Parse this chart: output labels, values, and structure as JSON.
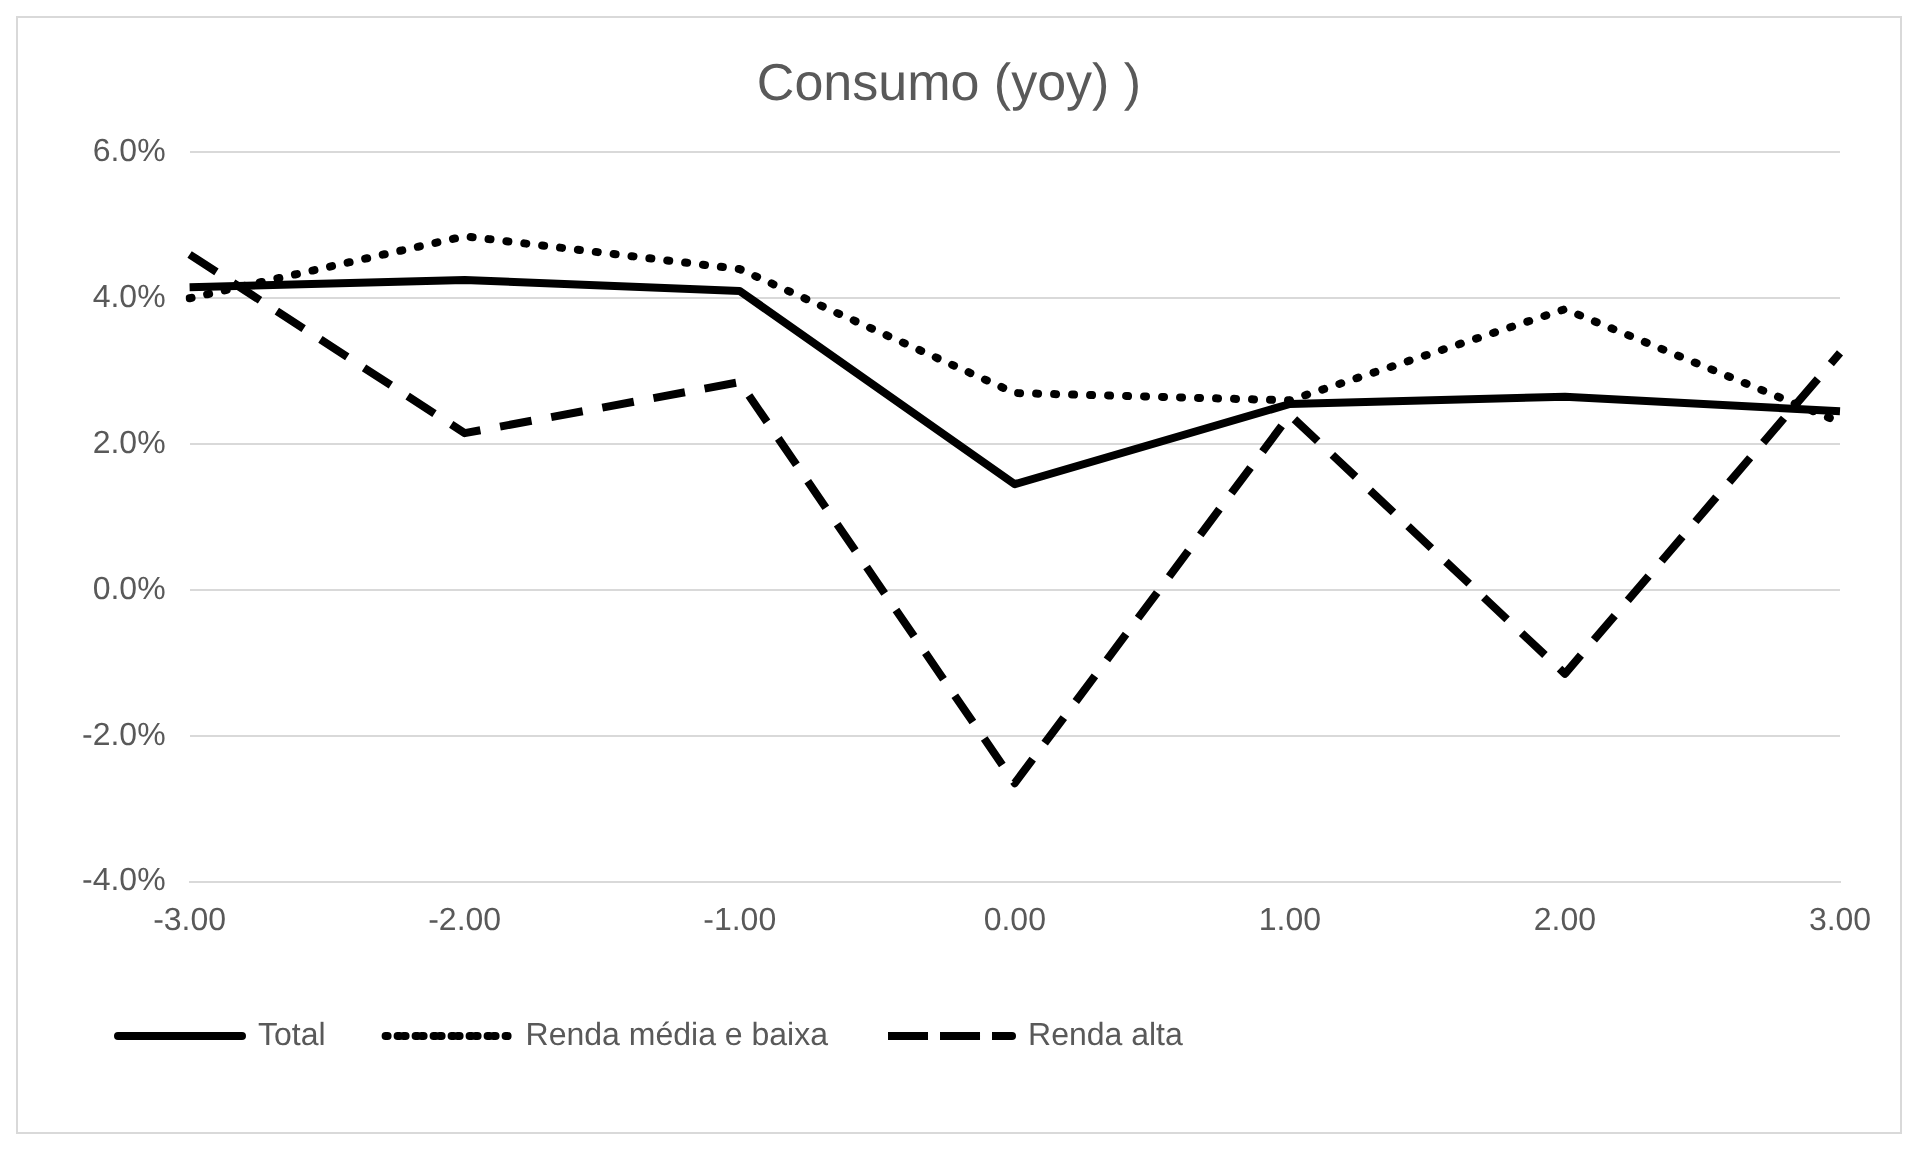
{
  "chart_data": {
    "type": "line",
    "title": "Consumo (yoy) )",
    "categories": [
      "-3.00",
      "-2.00",
      "-1.00",
      "0.00",
      "1.00",
      "2.00",
      "3.00"
    ],
    "series": [
      {
        "name": "Total",
        "color": "#000000",
        "line_style": "solid",
        "values": [
          4.15,
          4.25,
          4.1,
          1.45,
          2.55,
          2.65,
          2.45
        ]
      },
      {
        "name": "Renda média e baixa",
        "color": "#000000",
        "line_style": "dotted",
        "values": [
          4.0,
          4.85,
          4.4,
          2.7,
          2.6,
          3.85,
          2.3
        ]
      },
      {
        "name": "Renda alta",
        "color": "#000000",
        "line_style": "dashed",
        "values": [
          4.6,
          2.15,
          2.85,
          -2.65,
          2.4,
          -1.15,
          3.25
        ]
      }
    ],
    "ylim": [
      -4,
      6
    ],
    "yticks": [
      {
        "value": -4,
        "label": "-4.0%"
      },
      {
        "value": -2,
        "label": "-2.0%"
      },
      {
        "value": 0,
        "label": "0.0%"
      },
      {
        "value": 2,
        "label": "2.0%"
      },
      {
        "value": 4,
        "label": "4.0%"
      },
      {
        "value": 6,
        "label": "6.0%"
      }
    ],
    "grid": "y",
    "legend": "bottom",
    "marker": "none"
  }
}
